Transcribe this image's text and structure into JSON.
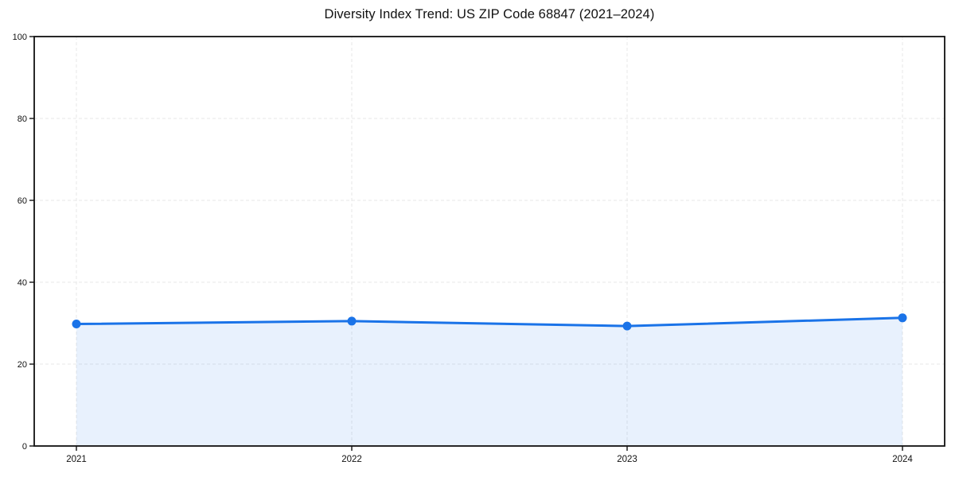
{
  "chart_data": {
    "type": "area",
    "title": "Diversity Index Trend: US ZIP Code 68847 (2021–2024)",
    "categories": [
      "2021",
      "2022",
      "2023",
      "2024"
    ],
    "series": [
      {
        "name": "Diversity Index",
        "values": [
          29.8,
          30.5,
          29.3,
          31.3
        ]
      }
    ],
    "xlabel": "",
    "ylabel": "",
    "ylim": [
      0,
      100
    ],
    "yticks": [
      0,
      20,
      40,
      60,
      80,
      100
    ],
    "grid": true,
    "grid_style": "dashed",
    "legend": false,
    "marker": "circle",
    "fill_opacity": 0.1,
    "colors": {
      "line": "#1a73e8",
      "fill": "#1a73e8",
      "grid": "#e7e7e7",
      "frame": "#111111",
      "text": "#111111",
      "background": "#ffffff"
    }
  }
}
